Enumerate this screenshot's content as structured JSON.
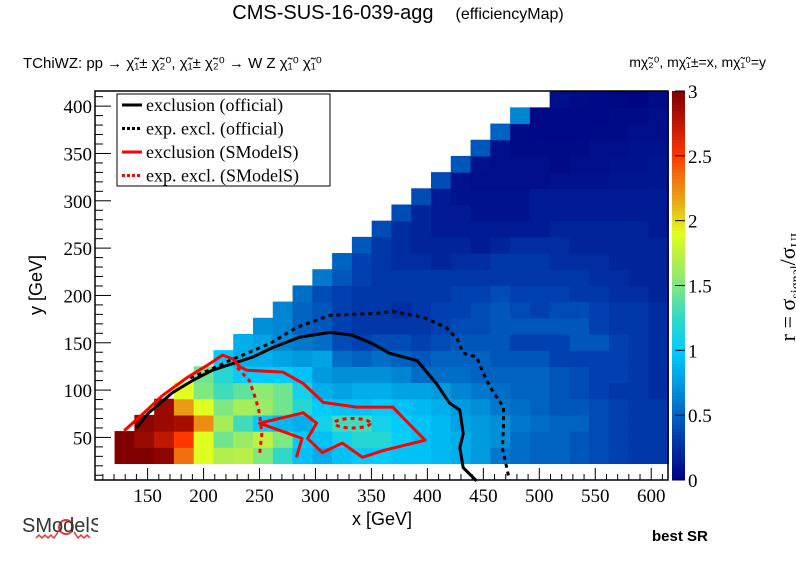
{
  "title": {
    "main": "CMS-SUS-16-039-agg",
    "sub": "(efficiencyMap)"
  },
  "process_label": "TChiWZ: pp → χ̃₁± χ̃₂⁰, χ̃₁± χ̃₂⁰ → W Z χ̃₁⁰ χ̃₁⁰",
  "mass_label": "mχ̃₂⁰, mχ̃₁±=x, mχ̃₁⁰=y",
  "footer_label": "best SR",
  "logo_text": "SModelS",
  "chart_data": {
    "type": "heatmap",
    "xlabel": "x [GeV]",
    "ylabel": "y [GeV]",
    "zlabel": {
      "prefix": "r = σ",
      "num_sub": "signal",
      "slash": "/σ",
      "den_sub": "UL"
    },
    "xlim": [
      103,
      615
    ],
    "ylim": [
      5,
      416
    ],
    "zlim": [
      0,
      3
    ],
    "x_ticks": [
      "150",
      "200",
      "250",
      "300",
      "350",
      "400",
      "450",
      "500",
      "550",
      "600"
    ],
    "y_ticks": [
      "50",
      "100",
      "150",
      "200",
      "250",
      "300",
      "350",
      "400"
    ],
    "z_ticks": [
      "0",
      "0.5",
      "1",
      "1.5",
      "2",
      "2.5",
      "3"
    ],
    "x_bins": {
      "first_edge": 120.5,
      "width": 17.67,
      "count": 28
    },
    "y_bins": {
      "first_edge": 22.5,
      "width": 17.1,
      "count": 23
    },
    "palette": [
      [
        0.0,
        "#000080"
      ],
      [
        0.35,
        "#0040b0"
      ],
      [
        0.7,
        "#0090d8"
      ],
      [
        1.0,
        "#00ccff"
      ],
      [
        1.25,
        "#30d8c8"
      ],
      [
        1.5,
        "#80e880"
      ],
      [
        1.75,
        "#c0f040"
      ],
      [
        1.9,
        "#e0ff20"
      ],
      [
        2.15,
        "#e8a818"
      ],
      [
        2.35,
        "#f07010"
      ],
      [
        2.5,
        "#ff3800"
      ],
      [
        2.75,
        "#c01800"
      ],
      [
        3.0,
        "#800000"
      ]
    ],
    "z_rows_bottom_to_top": [
      [
        3.0,
        3.0,
        2.95,
        2.35,
        1.9,
        1.7,
        1.72,
        1.5,
        1.25,
        0.95,
        0.85,
        0.95,
        1.0,
        1.0,
        0.95,
        0.95,
        0.9,
        0.85,
        0.75,
        0.6,
        0.55,
        0.5,
        0.5,
        0.45,
        0.4,
        0.35,
        0.3,
        0.3
      ],
      [
        3.0,
        2.9,
        2.75,
        2.5,
        1.9,
        1.45,
        1.6,
        1.75,
        1.5,
        1.0,
        0.95,
        1.1,
        1.2,
        1.2,
        1.05,
        0.95,
        0.9,
        0.85,
        0.75,
        0.7,
        0.55,
        0.5,
        0.5,
        0.45,
        0.4,
        0.35,
        0.3,
        0.3
      ],
      [
        null,
        2.95,
        2.9,
        2.85,
        2.25,
        1.65,
        1.3,
        1.0,
        0.9,
        0.85,
        1.1,
        1.3,
        1.3,
        1.1,
        1.0,
        0.95,
        0.9,
        0.8,
        0.75,
        0.7,
        0.6,
        0.55,
        0.5,
        0.5,
        0.4,
        0.35,
        0.3,
        0.3
      ],
      [
        null,
        null,
        2.9,
        2.2,
        1.9,
        1.5,
        1.65,
        1.6,
        1.45,
        1.2,
        1.0,
        0.95,
        0.95,
        1.0,
        0.95,
        0.9,
        0.85,
        0.75,
        0.7,
        0.6,
        0.55,
        0.5,
        0.45,
        0.45,
        0.4,
        0.35,
        0.3,
        0.3
      ],
      [
        null,
        null,
        null,
        1.9,
        1.5,
        1.3,
        1.4,
        1.55,
        1.45,
        1.1,
        0.85,
        0.8,
        0.85,
        0.85,
        0.8,
        0.8,
        0.75,
        0.65,
        0.6,
        0.55,
        0.5,
        0.5,
        0.45,
        0.4,
        0.35,
        0.3,
        0.3,
        0.25
      ],
      [
        null,
        null,
        null,
        null,
        1.45,
        1.2,
        1.0,
        1.0,
        1.0,
        0.95,
        0.75,
        0.7,
        0.7,
        0.7,
        0.65,
        0.55,
        0.55,
        0.55,
        0.5,
        0.5,
        0.5,
        0.5,
        0.45,
        0.4,
        0.35,
        0.35,
        0.3,
        0.25
      ],
      [
        null,
        null,
        null,
        null,
        null,
        1.0,
        0.85,
        0.85,
        0.8,
        0.75,
        0.8,
        0.55,
        0.5,
        0.55,
        0.5,
        0.45,
        0.5,
        0.5,
        0.5,
        0.45,
        0.45,
        0.45,
        0.35,
        0.35,
        0.35,
        0.35,
        0.3,
        0.25
      ],
      [
        null,
        null,
        null,
        null,
        null,
        null,
        0.85,
        0.8,
        0.65,
        0.6,
        0.55,
        0.4,
        0.35,
        0.4,
        0.4,
        0.35,
        0.4,
        0.45,
        0.45,
        0.45,
        0.35,
        0.35,
        0.35,
        0.45,
        0.45,
        0.35,
        0.3,
        0.25
      ],
      [
        null,
        null,
        null,
        null,
        null,
        null,
        null,
        0.7,
        0.65,
        0.5,
        0.45,
        0.35,
        0.3,
        0.3,
        0.3,
        0.3,
        0.35,
        0.4,
        0.4,
        0.45,
        0.45,
        0.45,
        0.45,
        0.45,
        0.35,
        0.3,
        0.3,
        0.25
      ],
      [
        null,
        null,
        null,
        null,
        null,
        null,
        null,
        null,
        0.65,
        0.5,
        0.45,
        0.35,
        0.3,
        0.3,
        0.25,
        0.3,
        0.35,
        0.35,
        0.4,
        0.45,
        0.4,
        0.35,
        0.4,
        0.4,
        0.35,
        0.3,
        0.3,
        0.25
      ],
      [
        null,
        null,
        null,
        null,
        null,
        null,
        null,
        null,
        null,
        0.55,
        0.4,
        0.35,
        0.3,
        0.3,
        0.3,
        0.3,
        0.3,
        0.35,
        0.35,
        0.4,
        0.35,
        0.35,
        0.35,
        0.3,
        0.3,
        0.25,
        0.25,
        0.2
      ],
      [
        null,
        null,
        null,
        null,
        null,
        null,
        null,
        null,
        null,
        null,
        0.6,
        0.45,
        0.35,
        0.3,
        0.3,
        0.3,
        0.3,
        0.3,
        0.3,
        0.3,
        0.3,
        0.3,
        0.3,
        0.3,
        0.25,
        0.25,
        0.2,
        0.2
      ],
      [
        null,
        null,
        null,
        null,
        null,
        null,
        null,
        null,
        null,
        null,
        null,
        0.5,
        0.35,
        0.3,
        0.25,
        0.25,
        0.2,
        0.25,
        0.25,
        0.3,
        0.3,
        0.3,
        0.25,
        0.25,
        0.25,
        0.2,
        0.2,
        0.2
      ],
      [
        null,
        null,
        null,
        null,
        null,
        null,
        null,
        null,
        null,
        null,
        null,
        null,
        0.45,
        0.3,
        0.25,
        0.2,
        0.2,
        0.2,
        0.15,
        0.2,
        0.25,
        0.25,
        0.25,
        0.2,
        0.2,
        0.2,
        0.2,
        0.2
      ],
      [
        null,
        null,
        null,
        null,
        null,
        null,
        null,
        null,
        null,
        null,
        null,
        null,
        null,
        0.4,
        0.25,
        0.2,
        0.15,
        0.15,
        0.15,
        0.15,
        0.15,
        0.15,
        0.2,
        0.2,
        0.2,
        0.2,
        0.2,
        0.15
      ],
      [
        null,
        null,
        null,
        null,
        null,
        null,
        null,
        null,
        null,
        null,
        null,
        null,
        null,
        null,
        0.4,
        0.2,
        0.15,
        0.15,
        0.1,
        0.1,
        0.1,
        0.15,
        0.15,
        0.15,
        0.15,
        0.15,
        0.15,
        0.15
      ],
      [
        null,
        null,
        null,
        null,
        null,
        null,
        null,
        null,
        null,
        null,
        null,
        null,
        null,
        null,
        null,
        0.4,
        0.15,
        0.1,
        0.1,
        0.1,
        0.1,
        0.15,
        0.15,
        0.15,
        0.15,
        0.15,
        0.15,
        0.15
      ],
      [
        null,
        null,
        null,
        null,
        null,
        null,
        null,
        null,
        null,
        null,
        null,
        null,
        null,
        null,
        null,
        null,
        0.4,
        0.1,
        0.08,
        0.08,
        0.08,
        0.08,
        0.1,
        0.1,
        0.1,
        0.12,
        0.12,
        0.12
      ],
      [
        null,
        null,
        null,
        null,
        null,
        null,
        null,
        null,
        null,
        null,
        null,
        null,
        null,
        null,
        null,
        null,
        null,
        0.45,
        0.1,
        0.08,
        0.08,
        0.08,
        0.06,
        0.08,
        0.08,
        0.1,
        0.1,
        0.12
      ],
      [
        null,
        null,
        null,
        null,
        null,
        null,
        null,
        null,
        null,
        null,
        null,
        null,
        null,
        null,
        null,
        null,
        null,
        null,
        0.45,
        0.08,
        0.06,
        0.06,
        0.06,
        0.06,
        0.08,
        0.08,
        0.1,
        0.1
      ],
      [
        null,
        null,
        null,
        null,
        null,
        null,
        null,
        null,
        null,
        null,
        null,
        null,
        null,
        null,
        null,
        null,
        null,
        null,
        null,
        0.5,
        0.06,
        0.05,
        0.05,
        0.05,
        0.06,
        0.06,
        0.08,
        0.08
      ],
      [
        null,
        null,
        null,
        null,
        null,
        null,
        null,
        null,
        null,
        null,
        null,
        null,
        null,
        null,
        null,
        null,
        null,
        null,
        null,
        null,
        0.65,
        0.05,
        0.05,
        0.05,
        0.05,
        0.06,
        0.06,
        0.08
      ],
      [
        null,
        null,
        null,
        null,
        null,
        null,
        null,
        null,
        null,
        null,
        null,
        null,
        null,
        null,
        null,
        null,
        null,
        null,
        null,
        null,
        null,
        null,
        0.08,
        0.06,
        0.05,
        0.04,
        0.03,
        0.06
      ]
    ],
    "legend": {
      "placement": "top-left",
      "entries": [
        {
          "label": "exclusion (official)",
          "color": "#000000",
          "style": "solid"
        },
        {
          "label": "exp. excl. (official)",
          "color": "#000000",
          "style": "dotted"
        },
        {
          "label": "exclusion (SModelS)",
          "color": "#ff0000",
          "style": "solid"
        },
        {
          "label": "exp. excl. (SModelS)",
          "color": "#ff0000",
          "style": "dotted"
        }
      ]
    },
    "curves": [
      {
        "legend_index": 0,
        "points": [
          [
            140,
            60
          ],
          [
            151,
            76
          ],
          [
            172,
            97
          ],
          [
            190,
            110
          ],
          [
            208,
            121
          ],
          [
            226,
            128
          ],
          [
            244,
            135
          ],
          [
            262,
            145
          ],
          [
            286,
            156
          ],
          [
            313,
            161
          ],
          [
            333,
            158
          ],
          [
            351,
            149
          ],
          [
            366,
            139
          ],
          [
            391,
            131
          ],
          [
            408,
            107
          ],
          [
            420,
            86
          ],
          [
            429,
            79
          ],
          [
            432,
            54
          ],
          [
            429,
            39
          ],
          [
            432,
            18
          ],
          [
            444,
            4
          ]
        ]
      },
      {
        "legend_index": 1,
        "points": [
          [
            188,
            113
          ],
          [
            205,
            121
          ],
          [
            223,
            131
          ],
          [
            259,
            149
          ],
          [
            283,
            166
          ],
          [
            313,
            179
          ],
          [
            355,
            181
          ],
          [
            369,
            183
          ],
          [
            396,
            177
          ],
          [
            417,
            166
          ],
          [
            427,
            153
          ],
          [
            432,
            139
          ],
          [
            444,
            135
          ],
          [
            450,
            118
          ],
          [
            456,
            103
          ],
          [
            468,
            82
          ],
          [
            468,
            61
          ],
          [
            467,
            39
          ],
          [
            472,
            12
          ],
          [
            473,
            5
          ]
        ]
      },
      {
        "legend_index": 2,
        "points": [
          [
            283,
            29
          ],
          [
            288,
            49
          ],
          [
            250,
            65
          ],
          [
            289,
            76
          ],
          [
            301,
            65
          ],
          [
            293,
            49
          ],
          [
            306,
            34
          ],
          [
            324,
            44
          ],
          [
            342,
            29
          ],
          [
            360,
            36
          ],
          [
            398,
            47
          ],
          [
            378,
            71
          ],
          [
            369,
            82
          ],
          [
            337,
            82
          ],
          [
            307,
            87
          ],
          [
            289,
            107
          ],
          [
            271,
            119
          ],
          [
            239,
            121
          ],
          [
            233,
            124
          ],
          [
            226,
            133
          ],
          [
            217,
            137
          ],
          [
            203,
            126
          ],
          [
            185,
            113
          ],
          [
            163,
            94
          ],
          [
            146,
            75
          ],
          [
            129,
            57
          ]
        ]
      },
      {
        "legend_index": 3,
        "points": [
          [
            230,
            124
          ],
          [
            241,
            110
          ],
          [
            247,
            89
          ],
          [
            250,
            75
          ],
          [
            252,
            54
          ],
          [
            250,
            31
          ]
        ]
      },
      {
        "legend_index": 3,
        "ellipse": {
          "cx": 333,
          "cy": 65,
          "rx": 16,
          "ry": 5
        }
      }
    ]
  }
}
